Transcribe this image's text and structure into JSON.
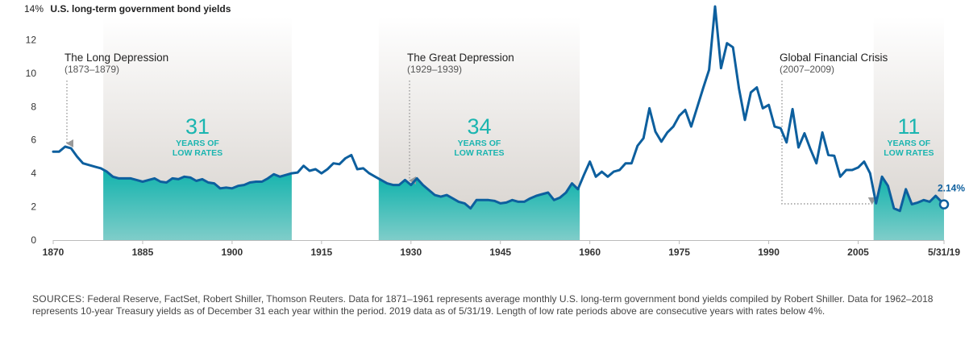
{
  "chart_data": {
    "type": "line",
    "title": "U.S. long-term government bond yields",
    "ylabel_top": "14%",
    "xlabel": "",
    "ylabel": "",
    "xlim": [
      1870,
      2019.4
    ],
    "ylim": [
      0,
      14
    ],
    "y_ticks": [
      0,
      2,
      4,
      6,
      8,
      10,
      12,
      14
    ],
    "y_tick_labels": [
      "0",
      "2",
      "4",
      "6",
      "8",
      "10",
      "12",
      "14%"
    ],
    "x_ticks": [
      1870,
      1885,
      1900,
      1915,
      1930,
      1945,
      1960,
      1975,
      1990,
      2005,
      2019.4
    ],
    "x_tick_labels": [
      "1870",
      "1885",
      "1900",
      "1915",
      "1930",
      "1945",
      "1960",
      "1975",
      "1990",
      "2005",
      "5/31/19"
    ],
    "grid": false,
    "series": [
      {
        "name": "U.S. long-term government bond yields",
        "color": "#0d5f9e",
        "points": [
          [
            1870,
            5.3
          ],
          [
            1871,
            5.3
          ],
          [
            1872,
            5.6
          ],
          [
            1873,
            5.5
          ],
          [
            1874,
            5.0
          ],
          [
            1875,
            4.6
          ],
          [
            1876,
            4.5
          ],
          [
            1877,
            4.4
          ],
          [
            1878,
            4.3
          ],
          [
            1879,
            4.1
          ],
          [
            1880,
            3.8
          ],
          [
            1881,
            3.7
          ],
          [
            1882,
            3.7
          ],
          [
            1883,
            3.7
          ],
          [
            1884,
            3.6
          ],
          [
            1885,
            3.5
          ],
          [
            1886,
            3.6
          ],
          [
            1887,
            3.7
          ],
          [
            1888,
            3.5
          ],
          [
            1889,
            3.45
          ],
          [
            1890,
            3.7
          ],
          [
            1891,
            3.65
          ],
          [
            1892,
            3.8
          ],
          [
            1893,
            3.75
          ],
          [
            1894,
            3.55
          ],
          [
            1895,
            3.65
          ],
          [
            1896,
            3.45
          ],
          [
            1897,
            3.4
          ],
          [
            1898,
            3.1
          ],
          [
            1899,
            3.15
          ],
          [
            1900,
            3.1
          ],
          [
            1901,
            3.25
          ],
          [
            1902,
            3.3
          ],
          [
            1903,
            3.45
          ],
          [
            1904,
            3.5
          ],
          [
            1905,
            3.5
          ],
          [
            1906,
            3.7
          ],
          [
            1907,
            3.95
          ],
          [
            1908,
            3.8
          ],
          [
            1909,
            3.9
          ],
          [
            1910,
            4.0
          ],
          [
            1911,
            4.05
          ],
          [
            1912,
            4.45
          ],
          [
            1913,
            4.15
          ],
          [
            1914,
            4.25
          ],
          [
            1915,
            4.0
          ],
          [
            1916,
            4.25
          ],
          [
            1917,
            4.6
          ],
          [
            1918,
            4.55
          ],
          [
            1919,
            4.9
          ],
          [
            1920,
            5.1
          ],
          [
            1921,
            4.25
          ],
          [
            1922,
            4.3
          ],
          [
            1923,
            4.0
          ],
          [
            1924,
            3.8
          ],
          [
            1925,
            3.6
          ],
          [
            1926,
            3.4
          ],
          [
            1927,
            3.3
          ],
          [
            1928,
            3.3
          ],
          [
            1929,
            3.6
          ],
          [
            1930,
            3.3
          ],
          [
            1931,
            3.7
          ],
          [
            1932,
            3.3
          ],
          [
            1933,
            3.0
          ],
          [
            1934,
            2.7
          ],
          [
            1935,
            2.6
          ],
          [
            1936,
            2.7
          ],
          [
            1937,
            2.5
          ],
          [
            1938,
            2.3
          ],
          [
            1939,
            2.2
          ],
          [
            1940,
            1.9
          ],
          [
            1941,
            2.4
          ],
          [
            1942,
            2.4
          ],
          [
            1943,
            2.4
          ],
          [
            1944,
            2.35
          ],
          [
            1945,
            2.2
          ],
          [
            1946,
            2.25
          ],
          [
            1947,
            2.4
          ],
          [
            1948,
            2.3
          ],
          [
            1949,
            2.3
          ],
          [
            1950,
            2.5
          ],
          [
            1951,
            2.65
          ],
          [
            1952,
            2.75
          ],
          [
            1953,
            2.85
          ],
          [
            1954,
            2.4
          ],
          [
            1955,
            2.55
          ],
          [
            1956,
            2.85
          ],
          [
            1957,
            3.4
          ],
          [
            1958,
            3.05
          ],
          [
            1959,
            3.9
          ],
          [
            1960,
            4.7
          ],
          [
            1961,
            3.8
          ],
          [
            1962,
            4.1
          ],
          [
            1963,
            3.8
          ],
          [
            1964,
            4.1
          ],
          [
            1965,
            4.2
          ],
          [
            1966,
            4.6
          ],
          [
            1967,
            4.6
          ],
          [
            1968,
            5.65
          ],
          [
            1969,
            6.1
          ],
          [
            1970,
            7.9
          ],
          [
            1971,
            6.5
          ],
          [
            1972,
            5.9
          ],
          [
            1973,
            6.45
          ],
          [
            1974,
            6.8
          ],
          [
            1975,
            7.45
          ],
          [
            1976,
            7.8
          ],
          [
            1977,
            6.8
          ],
          [
            1978,
            7.95
          ],
          [
            1979,
            9.1
          ],
          [
            1980,
            10.2
          ],
          [
            1981,
            14.0
          ],
          [
            1982,
            10.3
          ],
          [
            1983,
            11.8
          ],
          [
            1984,
            11.55
          ],
          [
            1985,
            9.1
          ],
          [
            1986,
            7.2
          ],
          [
            1987,
            8.85
          ],
          [
            1988,
            9.15
          ],
          [
            1989,
            7.9
          ],
          [
            1990,
            8.1
          ],
          [
            1991,
            6.8
          ],
          [
            1992,
            6.7
          ],
          [
            1993,
            5.85
          ],
          [
            1994,
            7.85
          ],
          [
            1995,
            5.55
          ],
          [
            1996,
            6.4
          ],
          [
            1997,
            5.45
          ],
          [
            1998,
            4.6
          ],
          [
            1999,
            6.45
          ],
          [
            2000,
            5.1
          ],
          [
            2001,
            5.05
          ],
          [
            2002,
            3.8
          ],
          [
            2003,
            4.2
          ],
          [
            2004,
            4.2
          ],
          [
            2005,
            4.35
          ],
          [
            2006,
            4.7
          ],
          [
            2007,
            4.0
          ],
          [
            2008,
            2.2
          ],
          [
            2009,
            3.8
          ],
          [
            2010,
            3.25
          ],
          [
            2011,
            1.9
          ],
          [
            2012,
            1.75
          ],
          [
            2013,
            3.05
          ],
          [
            2014,
            2.15
          ],
          [
            2015,
            2.25
          ],
          [
            2016,
            2.4
          ],
          [
            2017,
            2.3
          ],
          [
            2018,
            2.65
          ],
          [
            2019.4,
            2.14
          ]
        ]
      }
    ],
    "bands": [
      {
        "from": 1878.4,
        "to": 1910,
        "value": "31",
        "label_line1": "YEARS OF",
        "label_line2": "LOW RATES"
      },
      {
        "from": 1924.6,
        "to": 1958.3,
        "value": "34",
        "label_line1": "YEARS OF",
        "label_line2": "LOW RATES"
      },
      {
        "from": 2007.6,
        "to": 2019.4,
        "value": "11",
        "label_line1": "YEARS OF",
        "label_line2": "LOW RATES"
      }
    ],
    "low_rate_threshold": 4,
    "annotations": [
      {
        "title": "The Long Depression",
        "subtitle": "(1873–1879)",
        "arrow_year": 1872.4
      },
      {
        "title": "The Great Depression",
        "subtitle": "(1929–1939)",
        "arrow_year": 1930.2
      },
      {
        "title": "Global Financial Crisis",
        "subtitle": "(2007–2009)",
        "arrow_year": 2008
      }
    ],
    "end_label": "2.14%",
    "colors": {
      "line": "#0d5f9e",
      "teal_top": "#12b3ad",
      "teal_bottom": "#7fcdc9",
      "band_gray_top": "#ffffff",
      "band_gray_bottom": "#d5d0cb",
      "accent_text": "#1bb5b0"
    }
  },
  "footnote": {
    "sources_label": "SOURCES:",
    "text": "Federal Reserve, FactSet, Robert Shiller, Thomson Reuters. Data for 1871–1961 represents average monthly U.S. long-term government bond yields compiled by Robert Shiller. Data for 1962–2018 represents 10-year Treasury yields as of December 31 each year within the period. 2019 data as of 5/31/19. Length of low rate periods above are consecutive years with rates below 4%."
  }
}
